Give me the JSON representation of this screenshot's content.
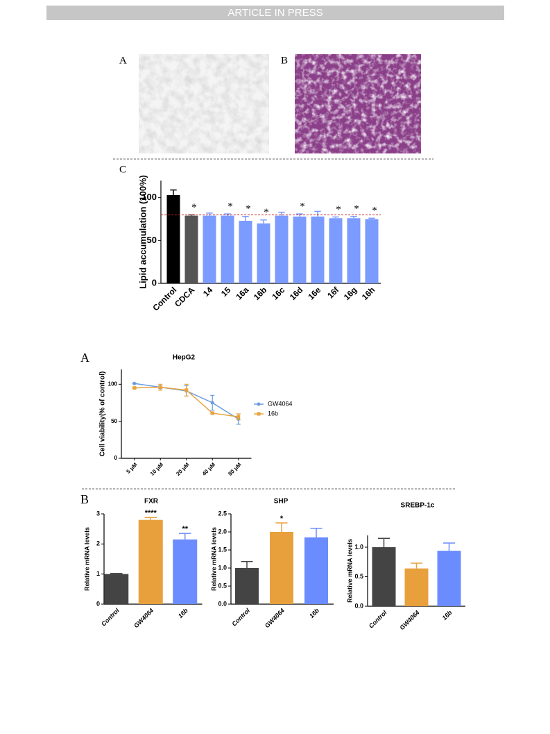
{
  "header": {
    "text": "ARTICLE IN PRESS"
  },
  "figure1": {
    "labels": [
      "A",
      "B",
      "C"
    ]
  },
  "figure2": {
    "labels": [
      "A",
      "B"
    ]
  },
  "chart_data": [
    {
      "type": "bar",
      "y_label": "Lipid accumulation (100%)",
      "categories": [
        "Control",
        "CDCA",
        "14",
        "15",
        "16a",
        "16b",
        "16c",
        "16d",
        "16e",
        "16f",
        "16g",
        "16h"
      ],
      "values": [
        103,
        79,
        79,
        79,
        73,
        70,
        79,
        78,
        78,
        76,
        76,
        75
      ],
      "errors": [
        6,
        1,
        3,
        2,
        5,
        4,
        4,
        3,
        6,
        1.5,
        2,
        1
      ],
      "significance": [
        null,
        "*",
        null,
        "*",
        "*",
        "*",
        null,
        "*",
        null,
        "*",
        "*",
        "*"
      ],
      "colors": [
        "#000000",
        "#555555",
        "#7b9bff",
        "#7b9bff",
        "#7b9bff",
        "#7b9bff",
        "#7b9bff",
        "#7b9bff",
        "#7b9bff",
        "#7b9bff",
        "#7b9bff",
        "#7b9bff"
      ],
      "reference_line": 80,
      "reference_color": "#cc2222",
      "ylim": [
        0,
        120
      ],
      "yticks": [
        0,
        50,
        100
      ]
    },
    {
      "type": "line",
      "title": "HepG2",
      "y_label": "Cell viability(% of control)",
      "categories": [
        "5 μM",
        "10 μM",
        "20 μM",
        "40 μM",
        "80 μM"
      ],
      "series": [
        {
          "name": "GW4064",
          "color": "#6b9be0",
          "values": [
            101,
            96,
            91,
            75,
            53
          ],
          "errors": [
            0.5,
            2,
            7,
            10,
            7
          ]
        },
        {
          "name": "16b",
          "color": "#e8a33d",
          "values": [
            95,
            96,
            92,
            61,
            56
          ],
          "errors": [
            1,
            4,
            8,
            1,
            4
          ]
        }
      ],
      "ylim": [
        0,
        120
      ],
      "yticks": [
        0,
        50,
        100
      ],
      "legend": "right"
    },
    {
      "type": "bar",
      "title": "FXR",
      "y_label": "Relative mRNA levels",
      "categories": [
        "Control",
        "GW4064",
        "16b"
      ],
      "values": [
        1.0,
        2.8,
        2.15
      ],
      "errors": [
        0.02,
        0.08,
        0.2
      ],
      "significance": [
        null,
        "****",
        "**"
      ],
      "colors": [
        "#444444",
        "#e8a03d",
        "#6b8cff"
      ],
      "ylim": [
        0,
        3
      ],
      "yticks": [
        0,
        1,
        2,
        3
      ]
    },
    {
      "type": "bar",
      "title": "SHP",
      "y_label": "Relative mRNA levels",
      "categories": [
        "Control",
        "GW4064",
        "16b"
      ],
      "values": [
        1.0,
        2.0,
        1.85
      ],
      "errors": [
        0.18,
        0.25,
        0.25
      ],
      "significance": [
        null,
        "*",
        null
      ],
      "colors": [
        "#444444",
        "#e8a03d",
        "#6b8cff"
      ],
      "ylim": [
        0,
        2.5
      ],
      "yticks": [
        {
          "value": 0,
          "label": "0.0"
        },
        0.5,
        {
          "value": 1,
          "label": "1.0"
        },
        1.5,
        {
          "value": 2,
          "label": "2.0"
        },
        2.5
      ]
    },
    {
      "type": "bar",
      "title": "SREBP-1c",
      "y_label": "Relative mRNA levels",
      "categories": [
        "Control",
        "GW4064",
        "16b"
      ],
      "values": [
        1.0,
        0.64,
        0.94
      ],
      "errors": [
        0.15,
        0.09,
        0.13
      ],
      "colors": [
        "#444444",
        "#e8a03d",
        "#6b8cff"
      ],
      "ylim": [
        0,
        1.2
      ],
      "yticks": [
        {
          "value": 0,
          "label": "0.0"
        },
        0.5,
        {
          "value": 1,
          "label": "1.0"
        }
      ]
    }
  ]
}
